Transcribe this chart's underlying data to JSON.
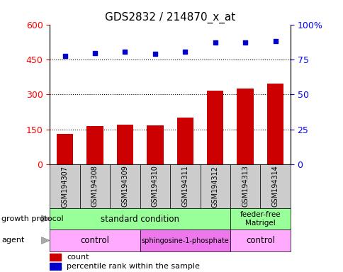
{
  "title": "GDS2832 / 214870_x_at",
  "samples": [
    "GSM194307",
    "GSM194308",
    "GSM194309",
    "GSM194310",
    "GSM194311",
    "GSM194312",
    "GSM194313",
    "GSM194314"
  ],
  "counts": [
    130,
    165,
    170,
    168,
    200,
    318,
    326,
    348
  ],
  "percentiles": [
    77.5,
    79.5,
    80.5,
    79.0,
    80.5,
    87.0,
    87.0,
    88.0
  ],
  "left_ylim": [
    0,
    600
  ],
  "right_ylim": [
    0,
    100
  ],
  "left_yticks": [
    0,
    150,
    300,
    450,
    600
  ],
  "right_yticks": [
    0,
    25,
    50,
    75,
    100
  ],
  "bar_color": "#cc0000",
  "dot_color": "#0000cc",
  "growth_protocol_color": "#99ff99",
  "agent_color_light": "#ffaaff",
  "agent_color_dark": "#ee77ee",
  "label_row1": "growth protocol",
  "label_row2": "agent",
  "legend_count": "count",
  "legend_pct": "percentile rank within the sample"
}
